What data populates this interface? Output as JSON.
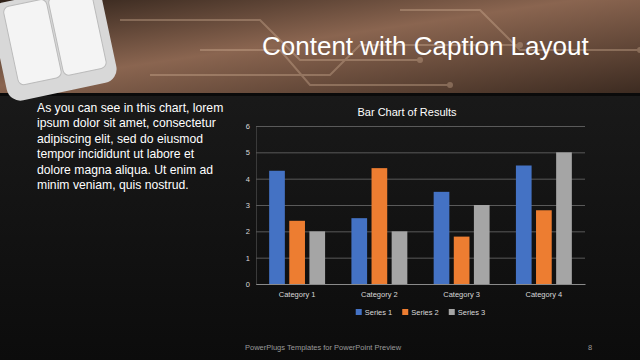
{
  "slide": {
    "title": "Content with Caption Layout",
    "caption": "As you can see in this chart, lorem ipsum dolor sit amet, consectetur adipiscing elit, sed do eiusmod tempor incididunt ut labore et dolore magna aliqua. Ut enim ad minim veniam, quis nostrud.",
    "footer": "PowerPlugs Templates for PowerPoint Preview",
    "page_number": 8
  },
  "chart_data": {
    "type": "bar",
    "title": "Bar Chart of Results",
    "categories": [
      "Category 1",
      "Category 2",
      "Category 3",
      "Category 4"
    ],
    "series": [
      {
        "name": "Series 1",
        "color": "#4472c4",
        "values": [
          4.3,
          2.5,
          3.5,
          4.5
        ]
      },
      {
        "name": "Series 2",
        "color": "#ed7d31",
        "values": [
          2.4,
          4.4,
          1.8,
          2.8
        ]
      },
      {
        "name": "Series 3",
        "color": "#a5a5a5",
        "values": [
          2,
          2,
          3,
          5
        ]
      }
    ],
    "ylim": [
      0,
      6
    ],
    "yticks": [
      0,
      1,
      2,
      3,
      4,
      5,
      6
    ],
    "grid": true,
    "legend": "bottom"
  }
}
